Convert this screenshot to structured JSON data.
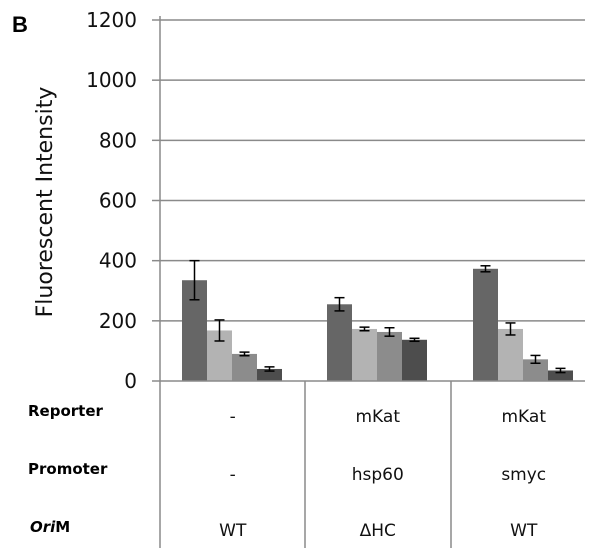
{
  "panel_label": "B",
  "chart_data": {
    "type": "bar",
    "ylabel": "Fluorescent Intensity",
    "ylim": [
      0,
      1200
    ],
    "yticks": [
      0,
      200,
      400,
      600,
      800,
      1000,
      1200
    ],
    "grid": true,
    "groups": [
      {
        "values": [
          335,
          168,
          90,
          40
        ],
        "errors": [
          65,
          35,
          6,
          7
        ]
      },
      {
        "values": [
          255,
          173,
          163,
          137
        ],
        "errors": [
          22,
          6,
          14,
          5
        ]
      },
      {
        "values": [
          373,
          173,
          72,
          35
        ],
        "errors": [
          10,
          20,
          13,
          7
        ]
      }
    ],
    "series_colors": [
      "#666666",
      "#b3b3b3",
      "#8c8c8c",
      "#4d4d4d"
    ]
  },
  "table": {
    "rows": [
      {
        "label": "Reporter",
        "cells": [
          "-",
          "mKat",
          "mKat"
        ]
      },
      {
        "label": "Promoter",
        "cells": [
          "-",
          "hsp60",
          "smyc"
        ]
      },
      {
        "label_main": "Ori",
        "label_rest": "M",
        "cells": [
          "WT",
          "ΔHC",
          "WT"
        ]
      }
    ]
  }
}
